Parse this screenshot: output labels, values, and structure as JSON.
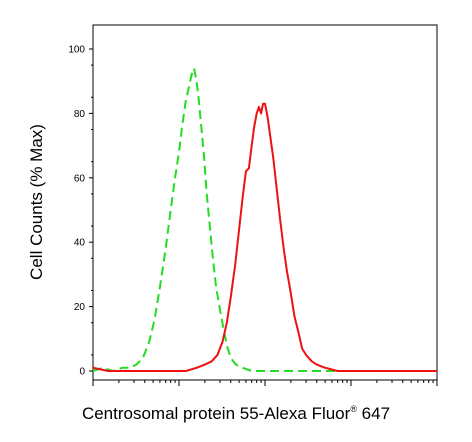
{
  "chart_data": {
    "type": "line",
    "title": "",
    "xlabel": "Centrosomal protein 55-Alexa Fluor",
    "xlabel_mark": "®",
    "xlabel_suffix": " 647",
    "ylabel": "Cell Counts (% Max)",
    "x_scale": "log",
    "xlim": [
      1,
      10000
    ],
    "ylim": [
      0,
      100
    ],
    "yticks": [
      0,
      20,
      40,
      60,
      80,
      100
    ],
    "ytick_labels": [
      "0",
      "20",
      "40",
      "60",
      "80",
      "100"
    ],
    "grid": false,
    "legend": "none",
    "series": [
      {
        "color": "#22dd22",
        "style": "dashed",
        "points": [
          [
            1,
            0
          ],
          [
            1.3,
            1
          ],
          [
            1.7,
            0
          ],
          [
            2.2,
            1
          ],
          [
            2.7,
            1
          ],
          [
            3.2,
            2
          ],
          [
            3.8,
            4
          ],
          [
            4.5,
            9
          ],
          [
            5.2,
            16
          ],
          [
            6,
            26
          ],
          [
            7,
            38
          ],
          [
            8,
            50
          ],
          [
            9,
            60
          ],
          [
            10,
            68
          ],
          [
            11,
            77
          ],
          [
            12,
            84
          ],
          [
            13,
            88
          ],
          [
            14,
            92
          ],
          [
            15,
            94
          ],
          [
            16,
            90
          ],
          [
            17,
            84
          ],
          [
            18,
            77
          ],
          [
            19.5,
            67
          ],
          [
            21,
            55
          ],
          [
            23,
            44
          ],
          [
            25,
            34
          ],
          [
            27,
            26
          ],
          [
            30,
            19
          ],
          [
            33,
            13
          ],
          [
            36,
            8
          ],
          [
            40,
            4
          ],
          [
            46,
            2
          ],
          [
            55,
            1
          ],
          [
            70,
            0
          ],
          [
            100,
            0
          ],
          [
            200,
            0
          ],
          [
            400,
            0
          ],
          [
            1000,
            0
          ]
        ]
      },
      {
        "color": "#ee1111",
        "style": "solid",
        "points": [
          [
            1,
            1
          ],
          [
            1.5,
            0
          ],
          [
            3,
            0
          ],
          [
            6,
            0
          ],
          [
            12,
            0
          ],
          [
            16,
            1
          ],
          [
            20,
            2
          ],
          [
            24,
            3
          ],
          [
            28,
            5
          ],
          [
            32,
            9
          ],
          [
            36,
            15
          ],
          [
            40,
            23
          ],
          [
            45,
            33
          ],
          [
            50,
            44
          ],
          [
            55,
            54
          ],
          [
            60,
            62
          ],
          [
            65,
            63
          ],
          [
            70,
            70
          ],
          [
            75,
            76
          ],
          [
            80,
            80
          ],
          [
            85,
            82
          ],
          [
            90,
            80
          ],
          [
            95,
            83
          ],
          [
            100,
            83
          ],
          [
            107,
            79
          ],
          [
            115,
            73
          ],
          [
            125,
            66
          ],
          [
            135,
            58
          ],
          [
            150,
            47
          ],
          [
            165,
            38
          ],
          [
            180,
            31
          ],
          [
            200,
            24
          ],
          [
            220,
            17
          ],
          [
            245,
            12
          ],
          [
            270,
            7
          ],
          [
            300,
            5
          ],
          [
            350,
            3
          ],
          [
            400,
            2
          ],
          [
            500,
            1
          ],
          [
            700,
            0
          ],
          [
            1000,
            0
          ],
          [
            2000,
            0
          ],
          [
            4000,
            0
          ],
          [
            10000,
            0
          ]
        ]
      }
    ]
  }
}
